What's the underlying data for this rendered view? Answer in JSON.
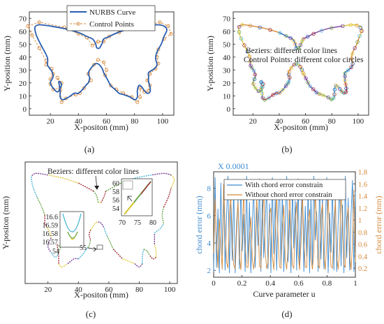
{
  "chart_data": [
    {
      "panel": "(a)",
      "type": "line",
      "xlabel": "X-positon (mm)",
      "ylabel": "Y-position (mm)",
      "xlim": [
        5,
        108
      ],
      "ylim": [
        -5,
        75
      ],
      "xticks": [
        20,
        40,
        60,
        80,
        100
      ],
      "yticks": [
        0,
        10,
        20,
        30,
        40,
        50,
        60,
        70
      ],
      "legend_position": "top-center",
      "series": [
        {
          "name": "NURBS Curve",
          "style": "solid line",
          "color": "#2a5db0"
        },
        {
          "name": "Control Points",
          "style": "dashed line with circle markers",
          "color": "#d4893a"
        }
      ],
      "curve": [
        [
          53,
          47
        ],
        [
          52,
          51
        ],
        [
          50,
          54
        ],
        [
          46,
          56
        ],
        [
          40,
          59
        ],
        [
          30,
          62
        ],
        [
          20,
          64
        ],
        [
          12,
          65
        ],
        [
          9,
          63
        ],
        [
          10,
          57
        ],
        [
          13,
          50
        ],
        [
          16,
          44
        ],
        [
          18,
          39
        ],
        [
          18,
          34
        ],
        [
          19,
          32
        ],
        [
          21,
          29
        ],
        [
          22,
          25
        ],
        [
          20,
          20
        ],
        [
          22,
          16
        ],
        [
          25,
          13
        ],
        [
          27,
          16
        ],
        [
          28,
          19
        ],
        [
          26,
          21
        ],
        [
          27,
          14
        ],
        [
          27,
          9
        ],
        [
          29,
          7
        ],
        [
          33,
          9
        ],
        [
          37,
          12
        ],
        [
          40,
          12
        ],
        [
          43,
          15
        ],
        [
          46,
          19
        ],
        [
          47,
          20
        ],
        [
          48,
          24
        ],
        [
          47,
          27
        ],
        [
          48,
          30
        ],
        [
          51,
          34
        ],
        [
          53,
          35
        ],
        [
          55,
          34
        ],
        [
          57,
          31
        ],
        [
          58,
          28
        ],
        [
          59,
          26
        ],
        [
          61,
          22
        ],
        [
          63,
          18
        ],
        [
          66,
          15
        ],
        [
          69,
          12
        ],
        [
          72,
          11
        ],
        [
          77,
          9
        ],
        [
          80,
          7
        ],
        [
          82,
          9
        ],
        [
          82,
          14
        ],
        [
          83,
          18
        ],
        [
          85,
          17
        ],
        [
          87,
          14
        ],
        [
          89,
          12
        ],
        [
          91,
          13
        ],
        [
          91,
          17
        ],
        [
          90,
          21
        ],
        [
          90,
          25
        ],
        [
          90,
          28
        ],
        [
          94,
          31
        ],
        [
          96,
          34
        ],
        [
          95,
          39
        ],
        [
          96,
          44
        ],
        [
          99,
          50
        ],
        [
          101,
          56
        ],
        [
          103,
          61
        ],
        [
          101,
          64
        ],
        [
          96,
          65
        ],
        [
          88,
          64
        ],
        [
          77,
          62
        ],
        [
          68,
          59
        ],
        [
          62,
          56
        ],
        [
          58,
          54
        ],
        [
          57,
          51
        ],
        [
          55,
          47
        ],
        [
          53,
          47
        ]
      ],
      "control_points": [
        [
          54,
          52
        ],
        [
          50,
          49
        ],
        [
          46,
          55
        ],
        [
          40,
          58
        ],
        [
          30,
          63
        ],
        [
          12,
          67
        ],
        [
          4,
          64
        ],
        [
          7,
          57
        ],
        [
          12,
          47
        ],
        [
          17,
          37
        ],
        [
          17,
          34
        ],
        [
          21,
          31
        ],
        [
          22,
          27
        ],
        [
          20,
          23
        ],
        [
          20,
          19
        ],
        [
          22,
          15
        ],
        [
          27,
          16
        ],
        [
          28,
          20
        ],
        [
          25,
          24
        ],
        [
          27,
          14
        ],
        [
          28,
          5
        ],
        [
          31,
          8
        ],
        [
          38,
          11
        ],
        [
          41,
          12
        ],
        [
          44,
          16
        ],
        [
          49,
          22
        ],
        [
          47,
          27
        ],
        [
          51,
          34
        ],
        [
          54,
          38
        ],
        [
          58,
          36
        ],
        [
          60,
          30
        ],
        [
          59,
          26
        ],
        [
          63,
          18
        ],
        [
          67,
          15
        ],
        [
          72,
          12
        ],
        [
          78,
          9
        ],
        [
          82,
          5
        ],
        [
          84,
          9
        ],
        [
          84,
          16
        ],
        [
          87,
          13
        ],
        [
          90,
          14
        ],
        [
          91,
          18
        ],
        [
          89,
          22
        ],
        [
          91,
          27
        ],
        [
          95,
          31
        ],
        [
          97,
          35
        ],
        [
          96,
          40
        ],
        [
          97,
          46
        ],
        [
          101,
          54
        ],
        [
          106,
          58
        ],
        [
          104,
          64
        ],
        [
          98,
          67
        ],
        [
          87,
          64
        ],
        [
          76,
          62
        ],
        [
          69,
          59
        ],
        [
          62,
          56
        ],
        [
          58,
          52
        ],
        [
          54,
          52
        ]
      ]
    },
    {
      "panel": "(b)",
      "type": "line",
      "xlabel": "X-positon (mm)",
      "ylabel": "Y-position (mm)",
      "xlim": [
        5,
        108
      ],
      "ylim": [
        -5,
        75
      ],
      "xticks": [
        20,
        40,
        60,
        80,
        100
      ],
      "yticks": [
        0,
        10,
        20,
        30,
        40,
        50,
        60,
        70
      ],
      "annotations": [
        "Beziers: different color lines",
        "Control Points: different color circles"
      ],
      "segment_colors": [
        "#2a5db0",
        "#d4893a",
        "#e0c83a",
        "#7a3f9b",
        "#6ea84b",
        "#4fb8d8",
        "#a3303a"
      ],
      "control_point_count": 96
    },
    {
      "panel": "(c)",
      "type": "line",
      "xlabel": "X-positon (mm)",
      "ylabel": "Y-positon (mm)",
      "xlim": [
        5,
        105
      ],
      "ylim": [
        5,
        75
      ],
      "xticks": [
        20,
        40,
        60,
        80,
        100
      ],
      "yticks": [],
      "annotations": [
        "Beziers: different color lines"
      ],
      "inset_right": {
        "xticks": [
          "70",
          "75",
          "80"
        ],
        "yticks": [
          "60",
          "58",
          "56",
          "54"
        ]
      },
      "inset_left": {
        "yticks": [
          "16.6",
          "16.59",
          "16.58",
          "16.57"
        ],
        "xticks": [
          "54"
        ],
        "pointer_label": "55"
      }
    },
    {
      "panel": "(d)",
      "type": "line",
      "xlabel": "Curve parameter u",
      "ylabel": "chord error (mm)",
      "ylabel_right": "chord error (mm)",
      "multiplier_label": "X 0.0001",
      "xlim": [
        0,
        1
      ],
      "ylim": [
        1.5,
        9.2
      ],
      "ylim_right": [
        0.05,
        1.8
      ],
      "xticks": [
        0,
        0.2,
        0.4,
        0.6,
        0.8,
        1
      ],
      "yticks": [
        2,
        4,
        6,
        8
      ],
      "yticks_right": [
        0.2,
        0.4,
        0.6,
        0.8,
        1,
        1.2,
        1.4,
        1.6,
        1.8
      ],
      "legend_position": "top-center",
      "series": [
        {
          "name": "With chord error constrain",
          "color": "#3d8bd1",
          "axis": "left",
          "values": [
            1.9,
            8.8,
            2.2,
            6.5,
            1.8,
            8.4,
            3.1,
            7.7,
            2.0,
            5.9,
            8.9,
            1.8,
            6.8,
            2.7,
            8.1,
            1.8,
            4.6,
            7.3,
            2.1,
            8.6,
            3.4,
            6.1,
            1.9,
            8.9,
            2.5,
            7.0,
            1.8,
            5.3,
            8.3,
            2.2,
            6.6,
            3.8,
            8.7,
            1.9,
            7.5,
            2.9,
            5.6,
            8.0,
            2.1,
            6.9,
            1.8,
            8.8,
            3.2,
            7.2,
            2.0,
            6.0,
            8.5,
            2.3,
            7.8,
            1.9,
            5.1,
            8.9,
            2.6,
            6.4,
            1.8,
            8.2,
            3.6,
            7.1,
            2.0,
            8.7,
            2.2,
            5.8,
            8.4,
            1.9,
            6.7,
            3.0,
            8.0,
            1.8,
            7.4,
            2.4,
            8.9,
            4.2,
            6.3,
            1.9,
            8.6,
            2.8,
            7.6,
            2.1,
            5.4,
            8.8,
            1.8,
            6.2,
            3.3,
            8.3,
            2.0,
            7.9,
            1.9,
            5.7,
            8.5,
            2.3,
            6.8,
            1.8,
            8.9,
            2.9,
            7.3,
            2.0,
            6.1,
            8.6,
            1.9,
            7.7
          ]
        },
        {
          "name": "Without chord error constrain",
          "color": "#d4893a",
          "axis": "right",
          "values": [
            0.45,
            1.35,
            0.7,
            0.2,
            1.02,
            0.55,
            0.18,
            1.6,
            0.9,
            0.3,
            0.2,
            1.12,
            1.4,
            0.62,
            0.25,
            0.19,
            0.95,
            1.3,
            0.4,
            0.17,
            0.8,
            1.48,
            0.6,
            0.22,
            0.21,
            0.7,
            1.05,
            0.33,
            0.18,
            0.5,
            1.38,
            1.0,
            0.24,
            0.2,
            0.9,
            1.55,
            0.5,
            0.19,
            0.3,
            1.1,
            1.2,
            0.4,
            0.17,
            0.7,
            1.45,
            0.68,
            0.22,
            0.2,
            0.9,
            1.25,
            0.34,
            0.18,
            0.55,
            1.5,
            0.85,
            0.24,
            0.2,
            1.0,
            1.3,
            0.45,
            0.17,
            0.6,
            1.42,
            0.75,
            0.22,
            0.21,
            0.95,
            1.18,
            0.36,
            0.18,
            0.48,
            1.52,
            0.9,
            0.25,
            0.2,
            1.08,
            1.28,
            0.42,
            0.17,
            0.64,
            1.46,
            0.72,
            0.23,
            0.2,
            0.92,
            1.33,
            0.38,
            0.18,
            0.5,
            1.58,
            0.88,
            0.26,
            0.21,
            1.02,
            1.22,
            0.44,
            0.17,
            0.62,
            1.5,
            0.3
          ]
        }
      ]
    }
  ],
  "panel_labels": [
    "(a)",
    "(b)",
    "(c)",
    "(d)"
  ]
}
